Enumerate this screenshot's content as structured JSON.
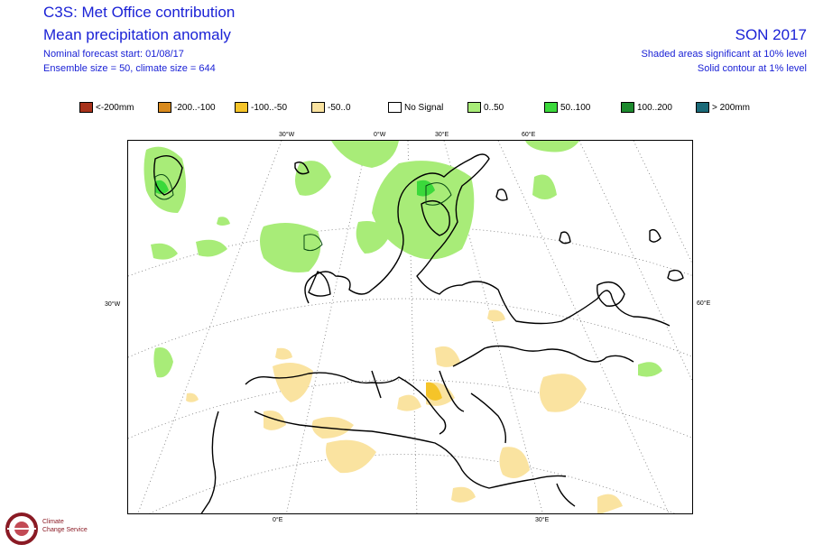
{
  "header": {
    "title": "C3S: Met Office contribution",
    "subtitle": "Mean precipitation anomaly",
    "forecast_start": "Nominal forecast start: 01/08/17",
    "ensemble": "Ensemble size = 50, climate size = 644",
    "season": "SON 2017",
    "significance_shaded": "Shaded areas significant at 10% level",
    "significance_contour": "Solid contour at 1% level"
  },
  "legend": [
    {
      "label": "<-200mm",
      "color": "#a8321b"
    },
    {
      "label": "-200..-100",
      "color": "#d98a1d"
    },
    {
      "label": "-100..-50",
      "color": "#f5c429"
    },
    {
      "label": "-50..0",
      "color": "#fae3a0"
    },
    {
      "label": "No Signal",
      "color": "#ffffff"
    },
    {
      "label": "0..50",
      "color": "#a8ec78"
    },
    {
      "label": "50..100",
      "color": "#3bd93b"
    },
    {
      "label": "100..200",
      "color": "#1d8a2e"
    },
    {
      "label": "> 200mm",
      "color": "#1a6a78"
    }
  ],
  "map_labels": {
    "top": [
      "30°W",
      "0°W",
      "30°E",
      "60°E"
    ],
    "left": "30°W",
    "right": "60°E",
    "bottom": [
      "0°E",
      "30°E"
    ]
  },
  "logo": {
    "line1": "Climate",
    "line2": "Change Service"
  }
}
